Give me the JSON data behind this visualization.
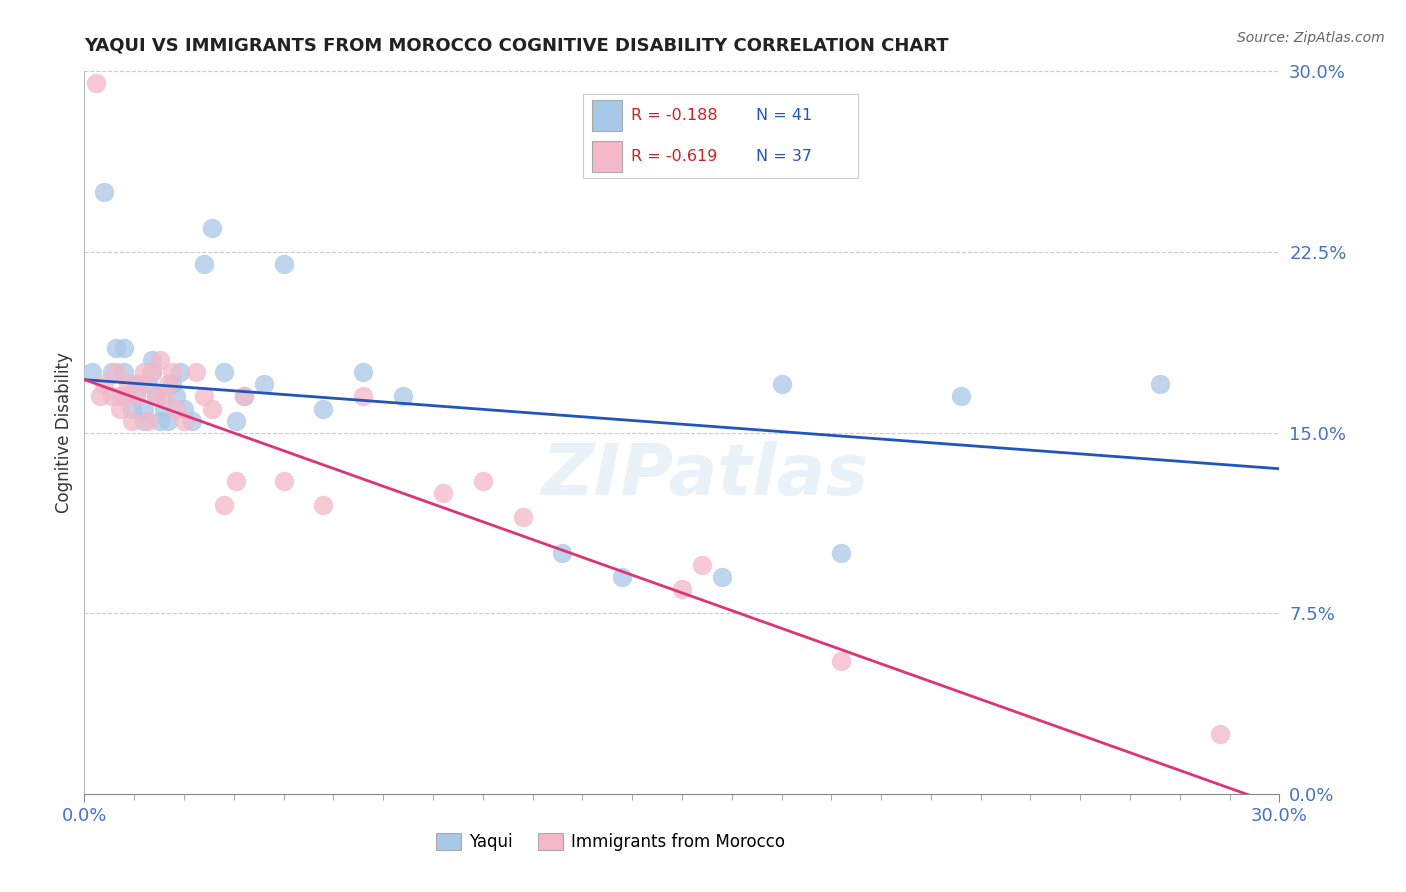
{
  "title": "YAQUI VS IMMIGRANTS FROM MOROCCO COGNITIVE DISABILITY CORRELATION CHART",
  "source": "Source: ZipAtlas.com",
  "ylabel": "Cognitive Disability",
  "xmin": 0.0,
  "xmax": 0.3,
  "ymin": 0.0,
  "ymax": 0.3,
  "grid_color": "#cccccc",
  "background_color": "#ffffff",
  "blue_color": "#a8c8e8",
  "pink_color": "#f4b8c8",
  "blue_line_color": "#2255bb",
  "pink_line_color": "#dd3377",
  "legend_R_blue": "R = -0.188",
  "legend_N_blue": "N = 41",
  "legend_R_pink": "R = -0.619",
  "legend_N_pink": "N = 37",
  "legend_label_blue": "Yaqui",
  "legend_label_pink": "Immigrants from Morocco",
  "watermark": "ZIPatlas",
  "yaqui_x": [
    0.002,
    0.005,
    0.007,
    0.008,
    0.009,
    0.01,
    0.01,
    0.012,
    0.013,
    0.013,
    0.015,
    0.015,
    0.016,
    0.017,
    0.017,
    0.018,
    0.019,
    0.02,
    0.021,
    0.022,
    0.023,
    0.024,
    0.025,
    0.027,
    0.03,
    0.032,
    0.035,
    0.038,
    0.04,
    0.045,
    0.05,
    0.06,
    0.07,
    0.08,
    0.12,
    0.135,
    0.16,
    0.175,
    0.19,
    0.22,
    0.27
  ],
  "yaqui_y": [
    0.175,
    0.25,
    0.175,
    0.185,
    0.165,
    0.175,
    0.185,
    0.16,
    0.165,
    0.17,
    0.155,
    0.16,
    0.17,
    0.175,
    0.18,
    0.165,
    0.155,
    0.16,
    0.155,
    0.17,
    0.165,
    0.175,
    0.16,
    0.155,
    0.22,
    0.235,
    0.175,
    0.155,
    0.165,
    0.17,
    0.22,
    0.16,
    0.175,
    0.165,
    0.1,
    0.09,
    0.09,
    0.17,
    0.1,
    0.165,
    0.17
  ],
  "morocco_x": [
    0.003,
    0.004,
    0.005,
    0.007,
    0.008,
    0.009,
    0.01,
    0.011,
    0.012,
    0.013,
    0.014,
    0.015,
    0.016,
    0.017,
    0.018,
    0.019,
    0.02,
    0.021,
    0.022,
    0.023,
    0.025,
    0.028,
    0.03,
    0.032,
    0.035,
    0.038,
    0.04,
    0.05,
    0.06,
    0.07,
    0.09,
    0.1,
    0.11,
    0.15,
    0.155,
    0.19,
    0.285
  ],
  "morocco_y": [
    0.295,
    0.165,
    0.17,
    0.165,
    0.175,
    0.16,
    0.165,
    0.17,
    0.155,
    0.165,
    0.17,
    0.175,
    0.155,
    0.175,
    0.165,
    0.18,
    0.165,
    0.17,
    0.175,
    0.16,
    0.155,
    0.175,
    0.165,
    0.16,
    0.12,
    0.13,
    0.165,
    0.13,
    0.12,
    0.165,
    0.125,
    0.13,
    0.115,
    0.085,
    0.095,
    0.055,
    0.025
  ],
  "blue_line_x0": 0.0,
  "blue_line_y0": 0.172,
  "blue_line_x1": 0.3,
  "blue_line_y1": 0.135,
  "pink_line_x0": 0.0,
  "pink_line_y0": 0.172,
  "pink_line_x1": 0.3,
  "pink_line_y1": -0.005
}
